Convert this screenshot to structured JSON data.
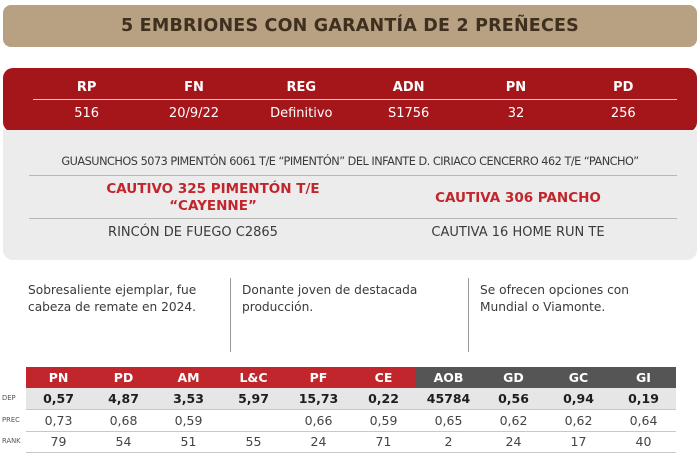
{
  "title": "5 EMBRIONES CON GARANTÍA DE 2 PREÑECES",
  "registry": {
    "headers": [
      "RP",
      "FN",
      "REG",
      "ADN",
      "PN",
      "PD"
    ],
    "values": [
      "516",
      "20/9/22",
      "Definitivo",
      "S1756",
      "32",
      "256"
    ]
  },
  "pedigree": {
    "top_line": "GUASUNCHOS 5073 PIMENTÓN 6061 T/E “PIMENTÓN” DEL INFANTE D. CIRIACO CENCERRO 462 T/E “PANCHO”",
    "sire": "CAUTIVO 325 PIMENTÓN T/E\n“CAYENNE”",
    "dam": "CAUTIVA 306 PANCHO",
    "sire_dam": "RINCÓN DE FUEGO C2865",
    "dam_dam": "CAUTIVA 16 HOME RUN TE"
  },
  "descriptions": [
    "Sobresaliente ejemplar, fue cabeza de remate en 2024.",
    "Donante joven de destacada producción.",
    "Se ofrecen opciones con Mundial o Viamonte."
  ],
  "stats": {
    "columns": [
      "PN",
      "PD",
      "AM",
      "L&C",
      "PF",
      "CE",
      "AOB",
      "GD",
      "GC",
      "GI"
    ],
    "header_colors": [
      "#c0262b",
      "#c0262b",
      "#c0262b",
      "#c0262b",
      "#c0262b",
      "#c0262b",
      "#555555",
      "#555555",
      "#555555",
      "#555555"
    ],
    "row_labels": [
      "DEP",
      "PREC",
      "RANK"
    ],
    "dep": [
      "0,57",
      "4,87",
      "3,53",
      "5,97",
      "15,73",
      "0,22",
      "45784",
      "0,56",
      "0,94",
      "0,19"
    ],
    "prec": [
      "0,73",
      "0,68",
      "0,59",
      "",
      "0,66",
      "0,59",
      "0,65",
      "0,62",
      "0,62",
      "0,64"
    ],
    "rank": [
      "79",
      "54",
      "51",
      "55",
      "24",
      "71",
      "2",
      "24",
      "17",
      "40"
    ]
  },
  "colors": {
    "title_bg": "#b8a082",
    "registry_bg": "#a4161a",
    "pedigree_bg": "#ececec",
    "accent_red": "#c0262b",
    "dark_gray": "#555555",
    "dep_row_bg": "#e6e6e6"
  }
}
